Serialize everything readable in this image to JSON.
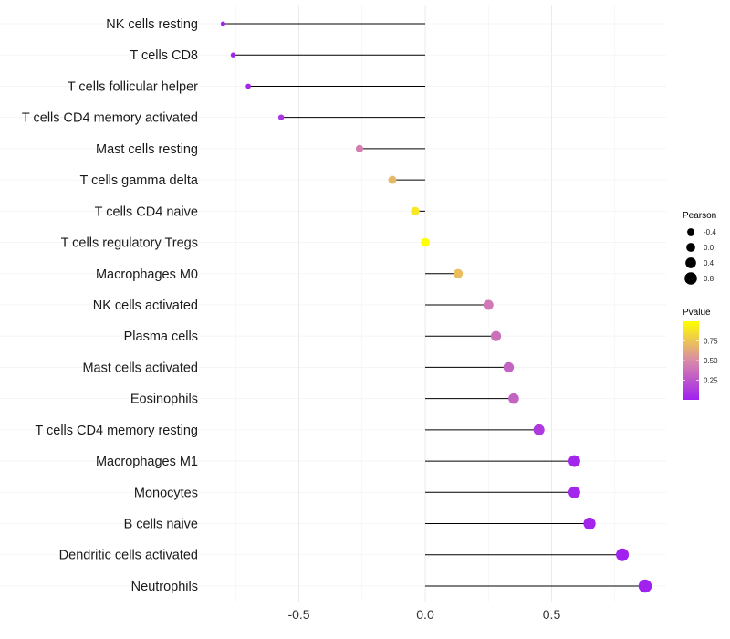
{
  "chart_data": {
    "type": "lollipop",
    "title": "",
    "xlabel": "",
    "ylabel": "",
    "xlim": [
      -0.85,
      0.95
    ],
    "xticks": [
      -0.5,
      0.0,
      0.5
    ],
    "xtick_labels": [
      "-0.5",
      "0.0",
      "0.5"
    ],
    "grid": true,
    "categories": [
      "NK cells resting",
      "T cells CD8",
      "T cells follicular helper",
      "T cells CD4 memory activated",
      "Mast cells resting",
      "T cells gamma delta",
      "T cells CD4 naive",
      "T cells regulatory  Tregs",
      "Macrophages M0",
      "NK cells activated",
      "Plasma cells",
      "Mast cells activated",
      "Eosinophils",
      "T cells CD4 memory resting",
      "Macrophages M1",
      "Monocytes",
      "B cells naive",
      "Dendritic cells activated",
      "Neutrophils"
    ],
    "pearson": [
      -0.8,
      -0.76,
      -0.7,
      -0.57,
      -0.26,
      -0.13,
      -0.04,
      0.0,
      0.13,
      0.25,
      0.28,
      0.33,
      0.35,
      0.45,
      0.59,
      0.59,
      0.65,
      0.78,
      0.87
    ],
    "pvalue": [
      0.02,
      0.02,
      0.03,
      0.1,
      0.45,
      0.7,
      0.9,
      1.0,
      0.72,
      0.42,
      0.38,
      0.32,
      0.32,
      0.12,
      0.03,
      0.03,
      0.02,
      0.01,
      0.01
    ],
    "legend": {
      "size_title": "Pearson",
      "size_labels": [
        "-0.4",
        "0.0",
        "0.4",
        "0.8"
      ],
      "size_values": [
        -0.4,
        0.0,
        0.4,
        0.8
      ],
      "color_title": "Pvalue",
      "color_labels": [
        "0.75",
        "0.50",
        "0.25"
      ],
      "color_values": [
        0.75,
        0.5,
        0.25
      ],
      "color_low": "#a020f0",
      "color_mid": "#d98aa8",
      "color_high": "#ffff00",
      "placement": "right"
    }
  }
}
